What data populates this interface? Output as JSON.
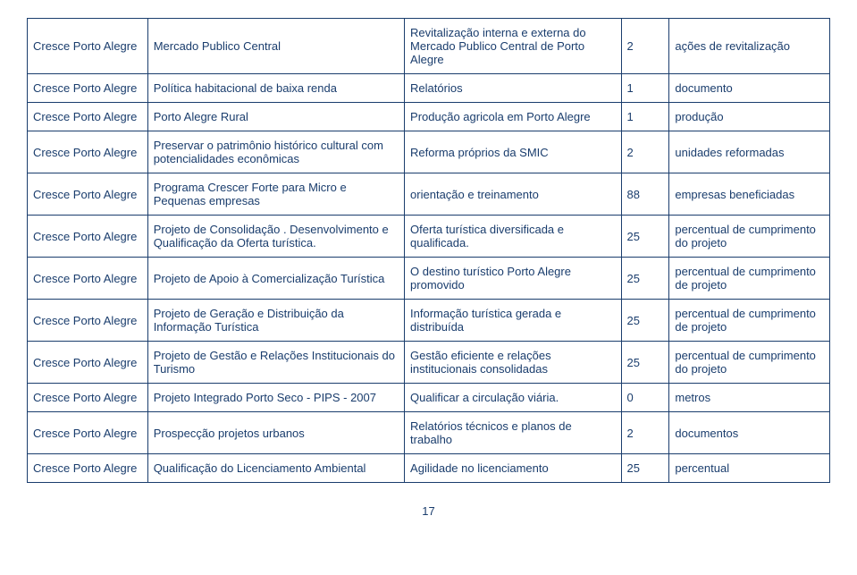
{
  "page_number": "17",
  "table": {
    "text_color": "#1a3d6d",
    "border_color": "#1a3d6d",
    "background_color": "#ffffff",
    "font_family": "Arial",
    "font_size_pt": 10,
    "column_widths_pct": [
      15,
      32,
      27,
      6,
      20
    ],
    "rows": [
      {
        "c1": "Cresce Porto Alegre",
        "c2": "Mercado Publico Central",
        "c3": "Revitalização  interna e externa do Mercado Publico Central de Porto Alegre",
        "c4": "2",
        "c5": "ações de revitalização"
      },
      {
        "c1": "Cresce Porto Alegre",
        "c2": "Política habitacional de baixa renda",
        "c3": "Relatórios",
        "c4": "1",
        "c5": "documento"
      },
      {
        "c1": "Cresce Porto Alegre",
        "c2": "Porto Alegre Rural",
        "c3": "Produção agricola em Porto Alegre",
        "c4": "1",
        "c5": "produção"
      },
      {
        "c1": "Cresce Porto Alegre",
        "c2": "Preservar o patrimônio histórico cultural com potencialidades econômicas",
        "c3": "Reforma próprios da SMIC",
        "c4": "2",
        "c5": "unidades reformadas"
      },
      {
        "c1": "Cresce Porto Alegre",
        "c2": "Programa Crescer Forte para Micro e Pequenas empresas",
        "c3": "orientação e treinamento",
        "c4": "88",
        "c5": "empresas beneficiadas"
      },
      {
        "c1": "Cresce Porto Alegre",
        "c2": "Projeto de  Consolidação . Desenvolvimento e Qualificação da Oferta turística.",
        "c3": "Oferta turística diversificada e qualificada.",
        "c4": "25",
        "c5": "percentual de cumprimento do projeto"
      },
      {
        "c1": "Cresce Porto Alegre",
        "c2": "Projeto de Apoio à Comercialização Turística",
        "c3": "O destino turístico Porto Alegre promovido",
        "c4": "25",
        "c5": "percentual de cumprimento de projeto"
      },
      {
        "c1": "Cresce Porto Alegre",
        "c2": "Projeto de Geração e Distribuição da Informação Turística",
        "c3": "Informação turística gerada e distribuída",
        "c4": "25",
        "c5": "percentual de cumprimento de projeto"
      },
      {
        "c1": "Cresce Porto Alegre",
        "c2": "Projeto de Gestão e Relações Institucionais do Turismo",
        "c3": "Gestão eficiente e relações institucionais consolidadas",
        "c4": "25",
        "c5": "percentual de cumprimento do projeto"
      },
      {
        "c1": "Cresce Porto Alegre",
        "c2": "Projeto Integrado Porto Seco - PIPS - 2007",
        "c3": "Qualificar a circulação viária.",
        "c4": "0",
        "c5": "metros"
      },
      {
        "c1": "Cresce Porto Alegre",
        "c2": "Prospecção projetos urbanos",
        "c3": "Relatórios técnicos e planos de trabalho",
        "c4": "2",
        "c5": "documentos"
      },
      {
        "c1": "Cresce Porto Alegre",
        "c2": "Qualificação do Licenciamento Ambiental",
        "c3": "Agilidade no licenciamento",
        "c4": "25",
        "c5": "percentual"
      }
    ]
  }
}
